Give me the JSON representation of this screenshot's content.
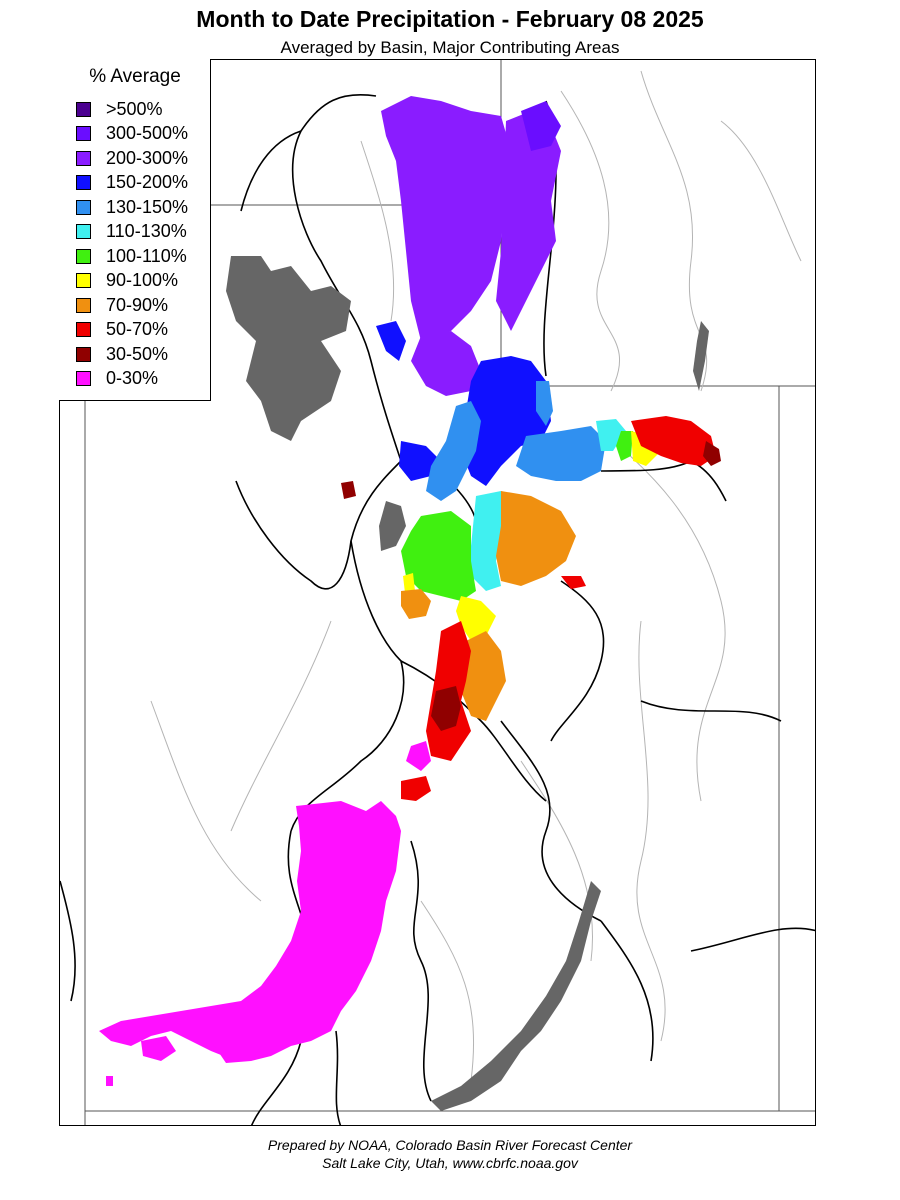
{
  "title": "Month to Date Precipitation - February 08 2025",
  "subtitle": "Averaged by Basin, Major Contributing Areas",
  "legend": {
    "title": "% Average",
    "items": [
      {
        "label": ">500%",
        "color": "#4b0090"
      },
      {
        "label": "300-500%",
        "color": "#6a0dff"
      },
      {
        "label": "200-300%",
        "color": "#8a1cff"
      },
      {
        "label": "150-200%",
        "color": "#1010ff"
      },
      {
        "label": "130-150%",
        "color": "#3090f0"
      },
      {
        "label": "110-130%",
        "color": "#40f0f0"
      },
      {
        "label": "100-110%",
        "color": "#40f010"
      },
      {
        "label": "90-100%",
        "color": "#ffff00"
      },
      {
        "label": "70-90%",
        "color": "#f09010"
      },
      {
        "label": "50-70%",
        "color": "#f00000"
      },
      {
        "label": "30-50%",
        "color": "#900000"
      },
      {
        "label": "0-30%",
        "color": "#ff10ff"
      }
    ]
  },
  "colors": {
    "lake": "#666666",
    "basin_outline": "#000000",
    "river": "#aaaaaa"
  },
  "footer": {
    "line1": "Prepared by NOAA, Colorado Basin River Forecast Center",
    "line2": "Salt Lake City, Utah, www.cbrfc.noaa.gov"
  }
}
